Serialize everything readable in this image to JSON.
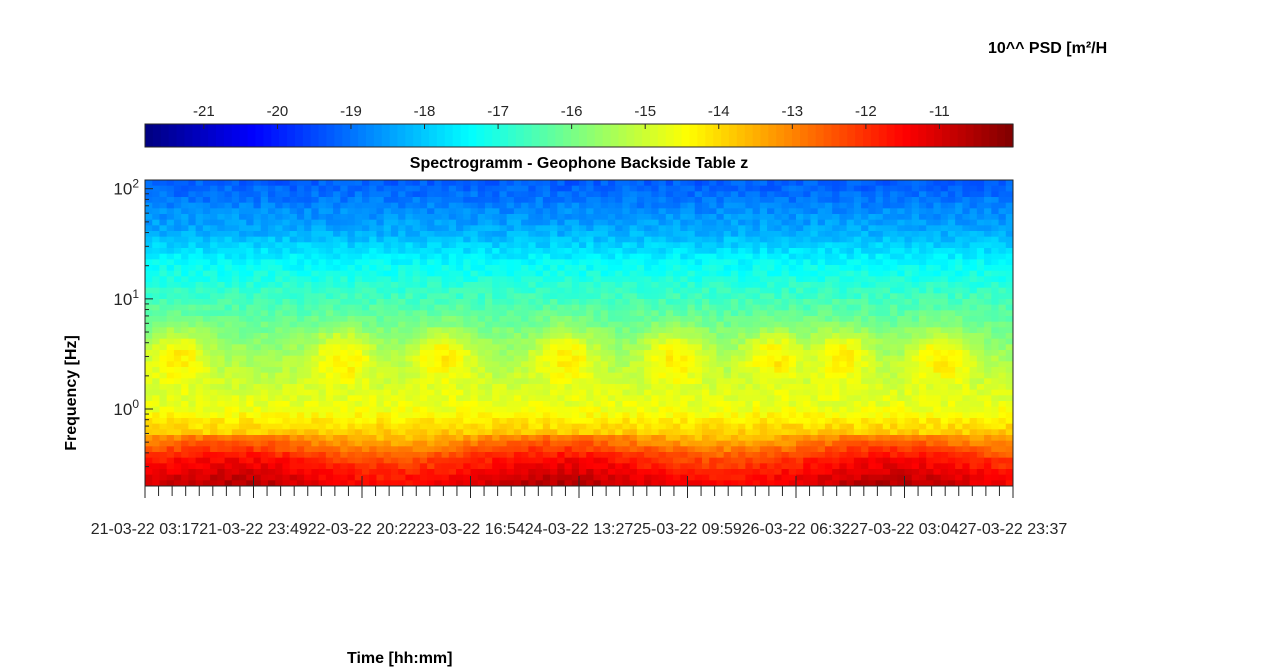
{
  "chart_data": {
    "type": "heatmap",
    "title": "Spectrogramm - Geophone Backside Table z",
    "xlabel": "Time [hh:mm]",
    "ylabel": "Frequency [Hz]",
    "y_scale": "log",
    "ylim": [
      0.2,
      120
    ],
    "y_ticks": [
      {
        "value": 1,
        "base": "10",
        "exp": "0"
      },
      {
        "value": 10,
        "base": "10",
        "exp": "1"
      },
      {
        "value": 100,
        "base": "10",
        "exp": "2"
      }
    ],
    "x_tick_labels": [
      "21-03-22 03:17",
      "21-03-22 23:49",
      "22-03-22 20:22",
      "23-03-22 16:54",
      "24-03-22 13:27",
      "25-03-22 09:59",
      "26-03-22 06:32",
      "27-03-22 03:04",
      "27-03-22 23:37"
    ],
    "colorbar": {
      "title": "10^^ PSD [m²/H",
      "colormap": "jet",
      "range": [
        -21.8,
        -10
      ],
      "ticks": [
        -21,
        -20,
        -19,
        -18,
        -17,
        -16,
        -15,
        -14,
        -13,
        -12,
        -11
      ]
    },
    "psd_profile_log10": [
      {
        "freq": 0.2,
        "psd": -11.3
      },
      {
        "freq": 0.35,
        "psd": -12.2
      },
      {
        "freq": 0.6,
        "psd": -13.8
      },
      {
        "freq": 1.0,
        "psd": -14.6
      },
      {
        "freq": 3.0,
        "psd": -15.5
      },
      {
        "freq": 10,
        "psd": -16.6
      },
      {
        "freq": 22,
        "psd": -17.4
      },
      {
        "freq": 40,
        "psd": -18.3
      },
      {
        "freq": 120,
        "psd": -19.3
      }
    ],
    "activity_bursts_days_from_start": [
      0.3,
      1.8,
      2.7,
      3.8,
      4.8,
      5.7,
      6.3,
      7.2
    ],
    "colors": {
      "low": "#00008f",
      "mid": "#80ff80",
      "high": "#800000"
    }
  }
}
